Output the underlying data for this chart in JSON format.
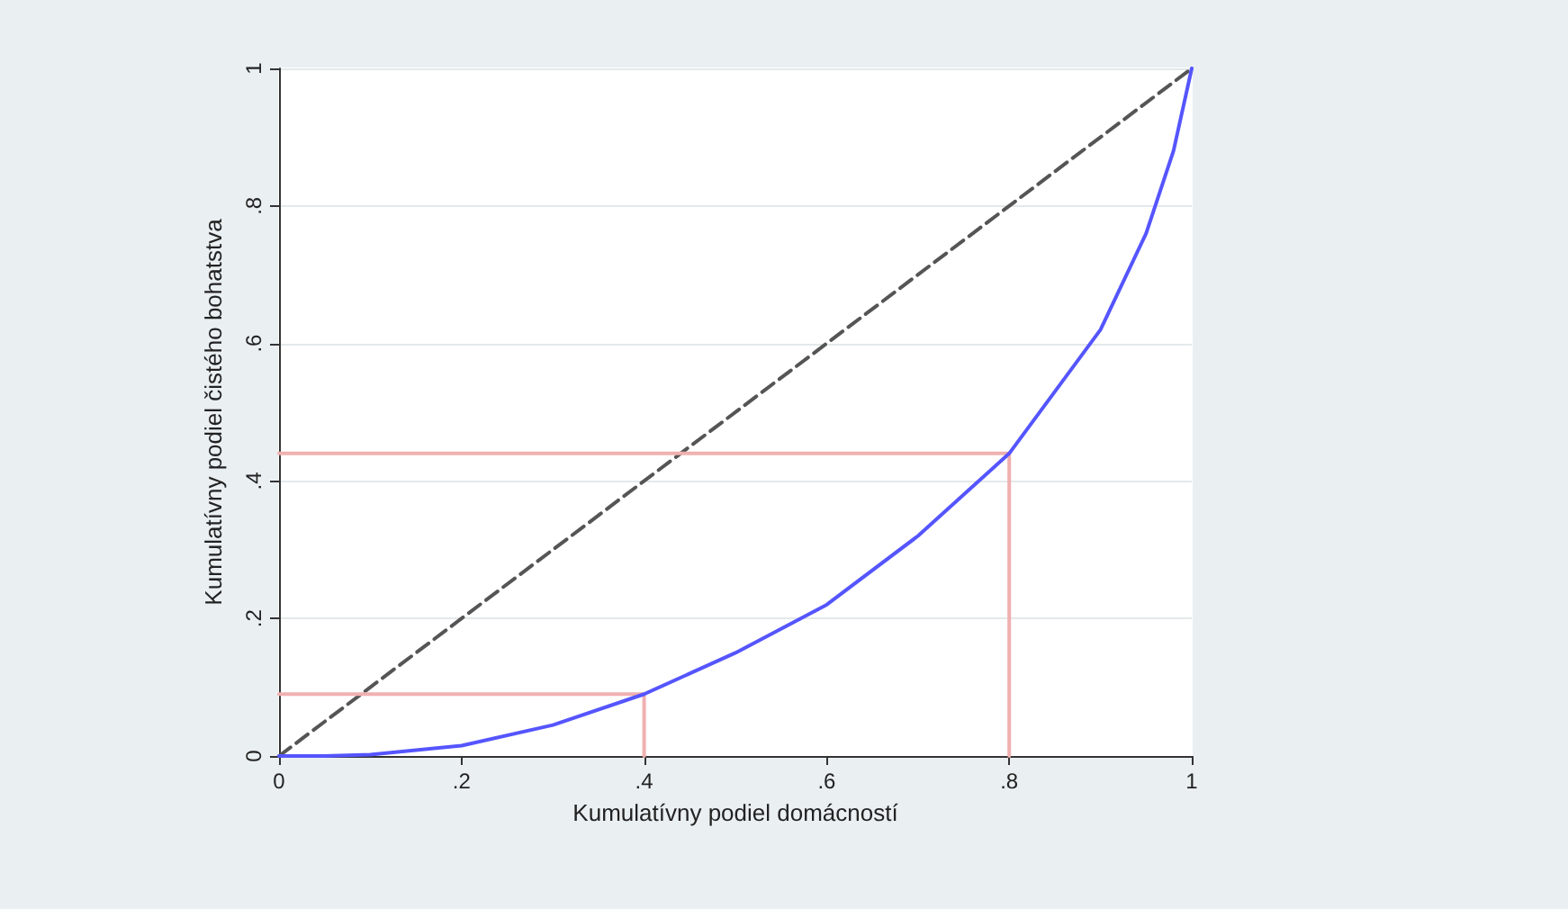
{
  "chart_data": {
    "type": "line",
    "xlabel": "Kumulatívny podiel domácností",
    "ylabel": "Kumulatívny podiel čistého bohatstva",
    "xlim": [
      0,
      1
    ],
    "ylim": [
      0,
      1
    ],
    "xticks": [
      0,
      {
        "value": 0.2,
        "label": ".2"
      },
      {
        "value": 0.4,
        "label": ".4"
      },
      {
        "value": 0.6,
        "label": ".6"
      },
      {
        "value": 0.8,
        "label": ".8"
      },
      1
    ],
    "yticks": [
      0,
      {
        "value": 0.2,
        "label": ".2"
      },
      {
        "value": 0.4,
        "label": ".4"
      },
      {
        "value": 0.6,
        "label": ".6"
      },
      {
        "value": 0.8,
        "label": ".8"
      },
      1
    ],
    "grid": "y",
    "marker": "none",
    "series": [
      {
        "color": "#555555",
        "line_style": "dashed",
        "x": [
          0,
          1
        ],
        "values": [
          0,
          1
        ]
      },
      {
        "color": "#f0b0b0",
        "line_style": "solid",
        "x": [
          0,
          0.4,
          0.4
        ],
        "values": [
          0.09,
          0.09,
          0
        ]
      },
      {
        "color": "#f0b0b0",
        "line_style": "solid",
        "x": [
          0,
          0.8,
          0.8
        ],
        "values": [
          0.44,
          0.44,
          0
        ]
      },
      {
        "color": "#5555ff",
        "line_style": "solid",
        "x": [
          0,
          0.05,
          0.1,
          0.2,
          0.3,
          0.4,
          0.5,
          0.6,
          0.7,
          0.8,
          0.9,
          0.95,
          0.98,
          1
        ],
        "values": [
          0,
          0,
          0.002,
          0.015,
          0.045,
          0.09,
          0.15,
          0.22,
          0.32,
          0.44,
          0.62,
          0.76,
          0.88,
          1
        ]
      }
    ]
  }
}
